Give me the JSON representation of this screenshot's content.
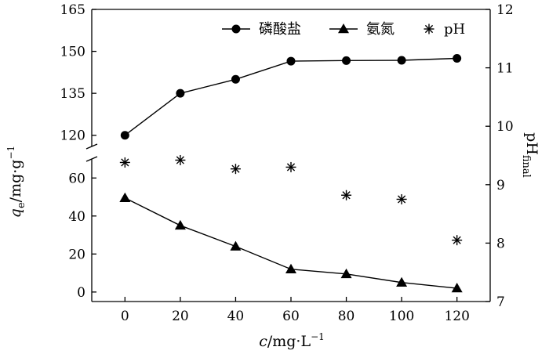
{
  "chart_data": {
    "type": "line",
    "x_axis": {
      "label_main": "c",
      "label_rest": "/mg·L",
      "label_sup": "−1",
      "ticks": [
        0,
        20,
        40,
        60,
        80,
        100,
        120
      ],
      "range": [
        -12,
        132
      ]
    },
    "y_left": {
      "label_main": "q",
      "label_sub": "e",
      "label_rest": "/mg·g",
      "label_sup": "−1",
      "broken": true,
      "lower_segment": {
        "range": [
          -5,
          70
        ],
        "ticks": [
          0,
          20,
          40,
          60
        ]
      },
      "upper_segment": {
        "range": [
          116,
          165
        ],
        "ticks": [
          120,
          135,
          150,
          165
        ]
      }
    },
    "y_right": {
      "label_main": "pH",
      "label_sub": "final",
      "range": [
        7,
        12
      ],
      "ticks": [
        7,
        8,
        9,
        10,
        11,
        12
      ]
    },
    "series": [
      {
        "name": "磷酸盐",
        "axis": "left",
        "marker": "circle",
        "line": true,
        "x": [
          0,
          20,
          40,
          60,
          80,
          100,
          120
        ],
        "y": [
          120,
          135,
          140,
          146.5,
          146.7,
          146.8,
          147.5
        ]
      },
      {
        "name": "氨氮",
        "axis": "left",
        "marker": "triangle",
        "line": true,
        "x": [
          0,
          20,
          40,
          60,
          80,
          100,
          120
        ],
        "y": [
          49.5,
          35,
          24,
          12,
          9.5,
          5,
          2
        ]
      },
      {
        "name": "pH",
        "axis": "right",
        "marker": "asterisk",
        "line": false,
        "x": [
          0,
          20,
          40,
          60,
          80,
          100,
          120
        ],
        "y": [
          9.38,
          9.42,
          9.27,
          9.3,
          8.82,
          8.75,
          8.05
        ]
      }
    ],
    "legend": {
      "placement": "top-right"
    },
    "grid": false
  }
}
